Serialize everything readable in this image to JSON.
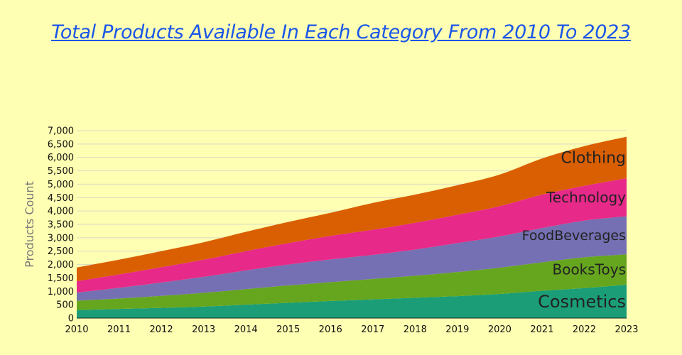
{
  "chart_data": {
    "type": "area",
    "stacked": true,
    "title": "Total Products Available In Each Category From 2010 To 2023",
    "xlabel": "",
    "ylabel": "Products Count",
    "x": [
      "2010",
      "2011",
      "2012",
      "2013",
      "2014",
      "2015",
      "2016",
      "2017",
      "2018",
      "2019",
      "2020",
      "2021",
      "2022",
      "2023"
    ],
    "ylim": [
      0,
      7000
    ],
    "yticks": [
      "0",
      "500",
      "1,000",
      "1,500",
      "2,000",
      "2,500",
      "3,000",
      "3,500",
      "4,000",
      "4,500",
      "5,000",
      "5,500",
      "6,000",
      "6,500",
      "7,000"
    ],
    "grid": true,
    "series": [
      {
        "name": "Cosmetics",
        "color": "#1b9e77",
        "values": [
          300,
          340,
          380,
          430,
          500,
          570,
          640,
          700,
          760,
          820,
          900,
          1020,
          1120,
          1250
        ]
      },
      {
        "name": "BooksToys",
        "color": "#66a61e",
        "values": [
          350,
          390,
          450,
          510,
          580,
          650,
          700,
          760,
          820,
          900,
          980,
          1060,
          1150,
          1130
        ]
      },
      {
        "name": "FoodBeverages",
        "color": "#7570b3",
        "values": [
          300,
          400,
          500,
          600,
          700,
          780,
          850,
          900,
          980,
          1080,
          1170,
          1280,
          1370,
          1420
        ]
      },
      {
        "name": "Technology",
        "color": "#e7298a",
        "values": [
          430,
          500,
          570,
          640,
          720,
          800,
          880,
          940,
          1000,
          1060,
          1130,
          1250,
          1300,
          1420
        ]
      },
      {
        "name": "Clothing",
        "color": "#d95f02",
        "values": [
          510,
          550,
          600,
          650,
          720,
          790,
          860,
          1000,
          1050,
          1100,
          1180,
          1350,
          1480,
          1550
        ]
      }
    ]
  }
}
